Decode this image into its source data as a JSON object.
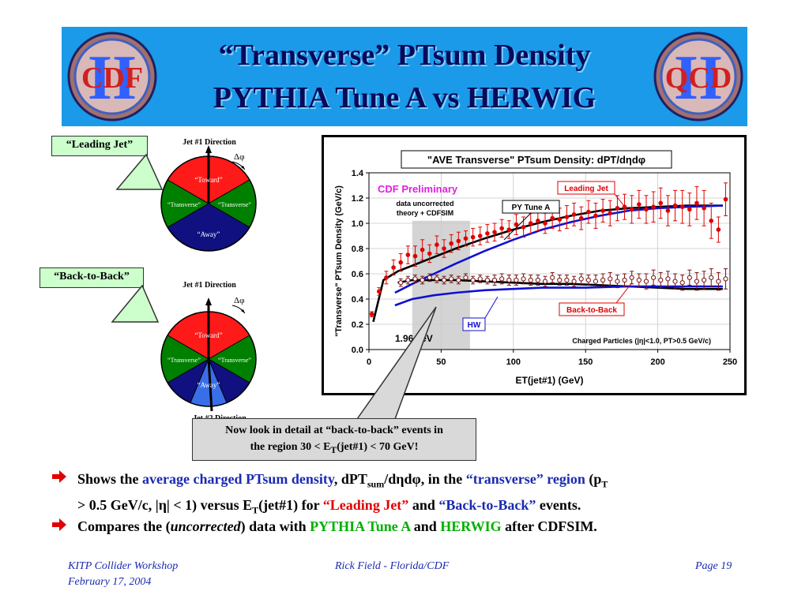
{
  "header": {
    "title_line1": "“Transverse” PTsum Density",
    "title_line2": "PYTHIA Tune A vs HERWIG",
    "logo_left_text": "CDF",
    "logo_right_text": "QCD",
    "logo_numeral": "II"
  },
  "diagram_leading": {
    "callout": "“Leading Jet”",
    "jet1": "Jet #1 Direction",
    "dphi": "Δφ",
    "toward": "“Toward”",
    "transverse_left": "“Transverse”",
    "transverse_right": "“Transverse”",
    "away": "“Away”"
  },
  "diagram_btb": {
    "callout": "“Back-to-Back”",
    "jet1": "Jet #1 Direction",
    "dphi": "Δφ",
    "toward": "“Toward”",
    "transverse_left": "“Transverse”",
    "transverse_right": "“Transverse”",
    "away": "“Away”",
    "jet2": "Jet #2 Direction"
  },
  "chart_data": {
    "type": "line",
    "title": "\"AVE Transverse\" PTsum Density: dPT/dηdφ",
    "xlabel": "ET(jet#1)   (GeV)",
    "ylabel": "\"Transverse\" PTsum Density (GeV/c)",
    "xlim": [
      0,
      250
    ],
    "ylim": [
      0,
      1.4
    ],
    "xticks": [
      "0",
      "50",
      "100",
      "150",
      "200",
      "250"
    ],
    "yticks": [
      "0.0",
      "0.2",
      "0.4",
      "0.6",
      "0.8",
      "1.0",
      "1.2",
      "1.4"
    ],
    "shaded_region": [
      30,
      70
    ],
    "grid": true,
    "annotations": {
      "preliminary": "CDF Preliminary",
      "uncorrected_1": "data uncorrected",
      "uncorrected_2": "theory + CDFSIM",
      "leading_jet_box": "Leading Jet",
      "py_tune_box": "PY Tune A",
      "btb_box": "Back-to-Back",
      "hw_box": "HW",
      "tev": "1.96 TeV",
      "charged": "Charged Particles (|η|<1.0, PT>0.5 GeV/c)"
    },
    "series": [
      {
        "name": "Leading Jet",
        "marker": "filled-circle",
        "color": "#e00000",
        "x": [
          2,
          7,
          12,
          17,
          22,
          27,
          32,
          37,
          42,
          47,
          52,
          57,
          62,
          67,
          72,
          77,
          82,
          87,
          92,
          97,
          102,
          107,
          112,
          117,
          122,
          127,
          132,
          137,
          142,
          147,
          152,
          157,
          162,
          167,
          172,
          177,
          182,
          187,
          192,
          197,
          202,
          207,
          212,
          217,
          222,
          227,
          232,
          237,
          242,
          247
        ],
        "y": [
          0.28,
          0.46,
          0.57,
          0.65,
          0.69,
          0.75,
          0.74,
          0.79,
          0.76,
          0.83,
          0.8,
          0.84,
          0.86,
          0.88,
          0.89,
          0.9,
          0.92,
          0.93,
          0.96,
          0.95,
          0.99,
          0.97,
          1.0,
          1.02,
          1.0,
          1.04,
          1.03,
          1.05,
          1.07,
          1.04,
          1.09,
          1.06,
          1.1,
          1.08,
          1.12,
          1.13,
          1.11,
          1.15,
          1.11,
          1.13,
          1.16,
          1.1,
          1.14,
          1.13,
          1.11,
          1.16,
          1.12,
          1.02,
          0.95,
          1.19
        ],
        "err": [
          0.02,
          0.03,
          0.05,
          0.06,
          0.07,
          0.07,
          0.08,
          0.08,
          0.07,
          0.07,
          0.07,
          0.07,
          0.07,
          0.06,
          0.07,
          0.07,
          0.07,
          0.07,
          0.07,
          0.07,
          0.08,
          0.08,
          0.08,
          0.08,
          0.08,
          0.08,
          0.09,
          0.09,
          0.09,
          0.09,
          0.09,
          0.1,
          0.09,
          0.1,
          0.1,
          0.1,
          0.11,
          0.11,
          0.11,
          0.12,
          0.12,
          0.12,
          0.12,
          0.13,
          0.13,
          0.13,
          0.14,
          0.14,
          0.1,
          0.13
        ]
      },
      {
        "name": "Back-to-Back",
        "marker": "open-circle",
        "color": "#7a1010",
        "x": [
          22,
          27,
          32,
          37,
          42,
          47,
          52,
          57,
          62,
          67,
          72,
          77,
          82,
          87,
          92,
          97,
          102,
          107,
          112,
          117,
          122,
          127,
          132,
          137,
          142,
          147,
          152,
          157,
          162,
          167,
          172,
          177,
          182,
          187,
          192,
          197,
          202,
          207,
          212,
          217,
          222,
          227,
          232,
          237,
          242,
          247
        ],
        "y": [
          0.53,
          0.55,
          0.56,
          0.55,
          0.57,
          0.56,
          0.55,
          0.56,
          0.55,
          0.57,
          0.55,
          0.56,
          0.55,
          0.55,
          0.56,
          0.55,
          0.55,
          0.56,
          0.55,
          0.55,
          0.54,
          0.57,
          0.55,
          0.55,
          0.54,
          0.56,
          0.55,
          0.54,
          0.55,
          0.56,
          0.54,
          0.55,
          0.57,
          0.55,
          0.54,
          0.57,
          0.55,
          0.56,
          0.54,
          0.53,
          0.57,
          0.54,
          0.55,
          0.57,
          0.54,
          0.56
        ],
        "err": [
          0.03,
          0.03,
          0.03,
          0.03,
          0.03,
          0.03,
          0.03,
          0.03,
          0.03,
          0.03,
          0.03,
          0.03,
          0.03,
          0.04,
          0.04,
          0.04,
          0.04,
          0.04,
          0.04,
          0.04,
          0.04,
          0.04,
          0.04,
          0.04,
          0.04,
          0.04,
          0.04,
          0.05,
          0.05,
          0.05,
          0.05,
          0.05,
          0.05,
          0.05,
          0.06,
          0.06,
          0.06,
          0.06,
          0.06,
          0.06,
          0.06,
          0.07,
          0.07,
          0.07,
          0.07,
          0.08
        ]
      },
      {
        "name": "PY Tune A",
        "role": "Leading Jet",
        "color": "#000000",
        "x": [
          3,
          10,
          20,
          40,
          60,
          80,
          100,
          120,
          140,
          160,
          180,
          200,
          220,
          245
        ],
        "y": [
          0.22,
          0.55,
          0.62,
          0.71,
          0.8,
          0.88,
          0.95,
          1.01,
          1.06,
          1.1,
          1.12,
          1.13,
          1.14,
          1.14
        ]
      },
      {
        "name": "HW",
        "role": "Leading Jet",
        "color": "#1010d0",
        "x": [
          18,
          30,
          45,
          60,
          80,
          100,
          120,
          140,
          160,
          180,
          200,
          220,
          245
        ],
        "y": [
          0.45,
          0.52,
          0.6,
          0.68,
          0.78,
          0.87,
          0.95,
          1.01,
          1.06,
          1.1,
          1.12,
          1.13,
          1.14
        ]
      },
      {
        "name": "PY Tune A",
        "role": "Back-to-Back",
        "color": "#000000",
        "x": [
          20,
          30,
          40,
          60,
          80,
          100,
          120,
          140,
          160,
          180,
          200,
          220,
          245
        ],
        "y": [
          0.53,
          0.55,
          0.55,
          0.55,
          0.54,
          0.53,
          0.52,
          0.52,
          0.51,
          0.5,
          0.49,
          0.48,
          0.48
        ]
      },
      {
        "name": "HW",
        "role": "Back-to-Back",
        "color": "#1010d0",
        "x": [
          18,
          30,
          45,
          60,
          80,
          100,
          120,
          150,
          180,
          210,
          245
        ],
        "y": [
          0.35,
          0.4,
          0.43,
          0.45,
          0.47,
          0.48,
          0.49,
          0.49,
          0.5,
          0.5,
          0.5
        ]
      }
    ]
  },
  "note": {
    "line1": "Now look in detail at “back-to-back” events in",
    "line2_pre": "the region 30 < E",
    "line2_sub": "T",
    "line2_post": "(jet#1) < 70 GeV!"
  },
  "bullets": {
    "b1_a": "Shows the ",
    "b1_b": "average charged PTsum density",
    "b1_c": ", dPT",
    "b1_sub": "sum",
    "b1_d": "/dηdφ, in the ",
    "b1_e": "“transverse” region",
    "b1_f": " (p",
    "b1_sub2": "T",
    "b1_g": "> 0.5 GeV/c, |η| < 1) versus E",
    "b1_sub3": "T",
    "b1_h": "(jet#1) for ",
    "b1_i": "“Leading Jet”",
    "b1_j": " and ",
    "b1_k": "“Back-to-Back”",
    "b1_l": " events.",
    "b2_a": "Compares the (",
    "b2_b": "uncorrected",
    "b2_c": ") data with ",
    "b2_d": "PYTHIA Tune A",
    "b2_e": " and ",
    "b2_f": "HERWIG",
    "b2_g": " after CDFSIM."
  },
  "footer": {
    "left_line1": "KITP Collider Workshop",
    "left_line2": "February 17, 2004",
    "center": "Rick Field - Florida/CDF",
    "right": "Page 19"
  },
  "colors": {
    "banner": "#1a9ae8",
    "title": "#0a0a5a",
    "toward": "#ff1a1a",
    "transverse": "#008000",
    "away": "#101080",
    "away_highlight": "#3a6ee8",
    "callout": "#ccffcc"
  }
}
